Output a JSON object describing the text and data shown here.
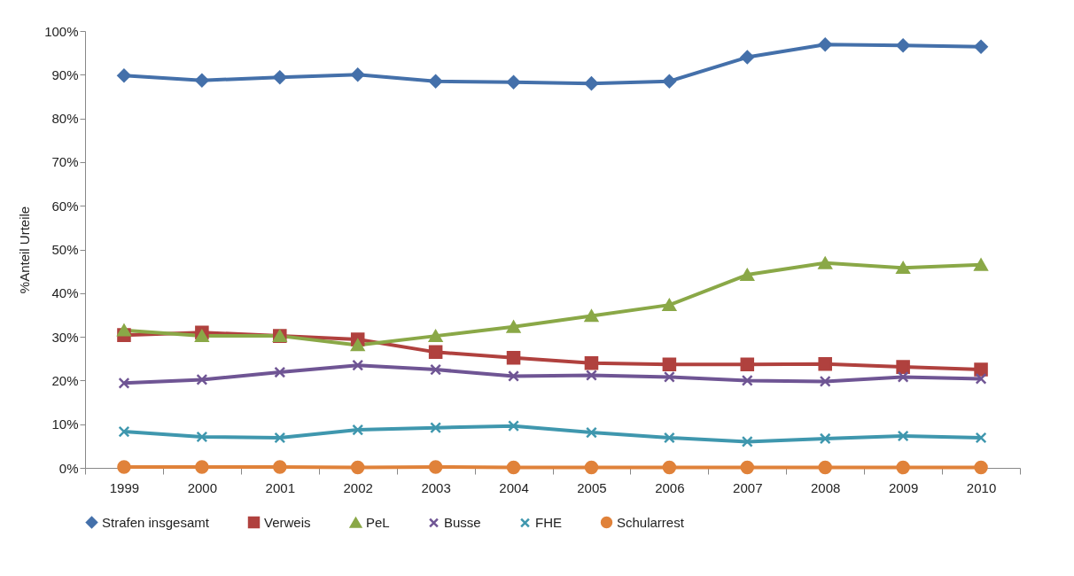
{
  "chart_data": {
    "type": "line",
    "ylabel": "%Anteil Urteile",
    "categories": [
      "1999",
      "2000",
      "2001",
      "2002",
      "2003",
      "2004",
      "2005",
      "2006",
      "2007",
      "2008",
      "2009",
      "2010"
    ],
    "ylim": [
      0,
      100
    ],
    "yticks": [
      {
        "value": 0,
        "label": "0%"
      },
      {
        "value": 10,
        "label": "10%"
      },
      {
        "value": 20,
        "label": "20%"
      },
      {
        "value": 30,
        "label": "30%"
      },
      {
        "value": 40,
        "label": "40%"
      },
      {
        "value": 50,
        "label": "50%"
      },
      {
        "value": 60,
        "label": "60%"
      },
      {
        "value": 70,
        "label": "70%"
      },
      {
        "value": 80,
        "label": "80%"
      },
      {
        "value": 90,
        "label": "90%"
      },
      {
        "value": 100,
        "label": "100%"
      }
    ],
    "grid": false,
    "legend": "bottom",
    "line_style": "solid",
    "series": [
      {
        "name": "Strafen insgesamt",
        "color": "#4470aa",
        "marker": "diamond",
        "values": [
          89.8,
          88.7,
          89.4,
          90.0,
          88.5,
          88.3,
          88.0,
          88.5,
          94.0,
          96.9,
          96.7,
          96.4
        ]
      },
      {
        "name": "Verweis",
        "color": "#b0413e",
        "marker": "square",
        "values": [
          30.4,
          31.0,
          30.2,
          29.4,
          26.5,
          25.2,
          24.0,
          23.7,
          23.7,
          23.8,
          23.1,
          22.5
        ]
      },
      {
        "name": "PeL",
        "color": "#8aa847",
        "marker": "triangle",
        "values": [
          31.5,
          30.2,
          30.2,
          28.1,
          30.2,
          32.3,
          34.8,
          37.3,
          44.2,
          46.9,
          45.8,
          46.5
        ]
      },
      {
        "name": "Busse",
        "color": "#6f5594",
        "marker": "cross",
        "values": [
          19.4,
          20.2,
          21.9,
          23.5,
          22.5,
          21.0,
          21.2,
          20.8,
          20.0,
          19.8,
          20.8,
          20.4
        ]
      },
      {
        "name": "FHE",
        "color": "#3f97ae",
        "marker": "cross",
        "values": [
          8.3,
          7.1,
          6.9,
          8.7,
          9.2,
          9.6,
          8.1,
          6.9,
          6.0,
          6.7,
          7.3,
          6.9
        ]
      },
      {
        "name": "Schularrest",
        "color": "#e0823a",
        "marker": "circle",
        "values": [
          0.2,
          0.2,
          0.2,
          0.1,
          0.2,
          0.1,
          0.1,
          0.1,
          0.1,
          0.1,
          0.1,
          0.1
        ]
      }
    ]
  }
}
